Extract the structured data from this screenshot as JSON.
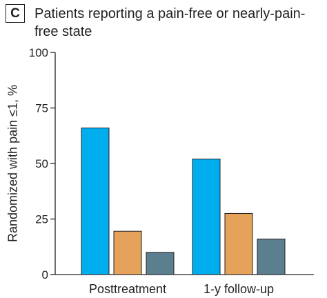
{
  "panel": {
    "badge": "C",
    "title": "Patients reporting a pain-free or nearly-pain-free state"
  },
  "chart_data": {
    "type": "bar",
    "title": "Patients reporting a pain-free or nearly-pain-free state",
    "xlabel": "",
    "ylabel": "Randomized with pain ≤1, %",
    "ylim": [
      0,
      100
    ],
    "yticks": [
      0,
      25,
      50,
      75,
      100
    ],
    "categories": [
      "Posttreatment",
      "1-y follow-up"
    ],
    "series": [
      {
        "values": [
          66,
          52
        ],
        "color": "#00aeef"
      },
      {
        "values": [
          19.5,
          27.5
        ],
        "color": "#e5a25a"
      },
      {
        "values": [
          10,
          16
        ],
        "color": "#5b7f8f"
      }
    ],
    "grid": false,
    "legend": "none"
  }
}
